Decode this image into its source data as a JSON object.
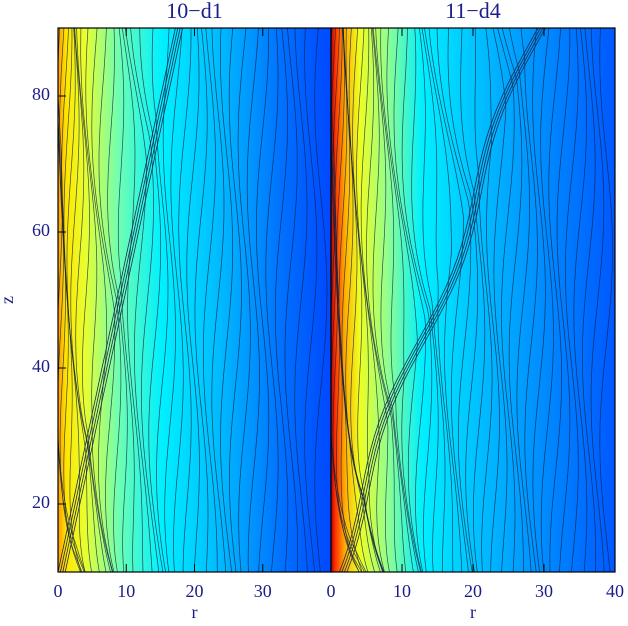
{
  "chart_data": [
    {
      "type": "contour",
      "title": "10−d1",
      "xlabel": "r",
      "ylabel": "z",
      "xlim": [
        0,
        40
      ],
      "ylim": [
        10,
        90
      ],
      "xticks": [
        0,
        10,
        20,
        30
      ],
      "yticks": [
        20,
        40,
        60,
        80
      ]
    },
    {
      "type": "contour",
      "title": "11−d4",
      "xlabel": "r",
      "xlim": [
        0,
        40
      ],
      "ylim": [
        10,
        90
      ],
      "xticks": [
        0,
        10,
        20,
        30,
        40
      ]
    }
  ]
}
